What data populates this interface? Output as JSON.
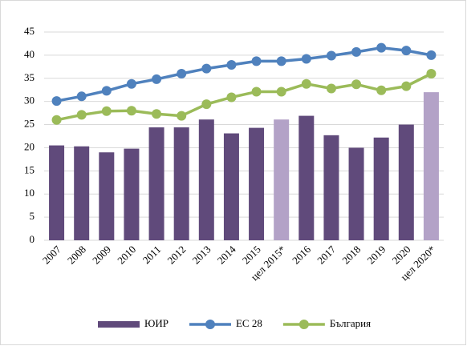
{
  "chart_data": {
    "type": "bar-line",
    "categories": [
      "2007",
      "2008",
      "2009",
      "2010",
      "2011",
      "2012",
      "2013",
      "2014",
      "2015",
      "цел 2015*",
      "2016",
      "2017",
      "2018",
      "2019",
      "2020",
      "цел 2020*"
    ],
    "series": [
      {
        "name": "ЮИР",
        "type": "bar",
        "color": "#604a7b",
        "colors": [
          "#604a7b",
          "#604a7b",
          "#604a7b",
          "#604a7b",
          "#604a7b",
          "#604a7b",
          "#604a7b",
          "#604a7b",
          "#604a7b",
          "#b3a2c7",
          "#604a7b",
          "#604a7b",
          "#604a7b",
          "#604a7b",
          "#604a7b",
          "#b3a2c7"
        ],
        "values": [
          20.5,
          20.3,
          19,
          19.8,
          24.4,
          24.4,
          26.1,
          23.1,
          24.3,
          26.1,
          26.9,
          22.7,
          20,
          22.2,
          25,
          32
        ]
      },
      {
        "name": "ЕС 28",
        "type": "line",
        "color": "#4f81bd",
        "values": [
          30.1,
          31.1,
          32.3,
          33.8,
          34.8,
          36,
          37.1,
          37.9,
          38.7,
          38.7,
          39.2,
          39.9,
          40.7,
          41.6,
          41,
          40
        ]
      },
      {
        "name": "България",
        "type": "line",
        "color": "#9bbb59",
        "values": [
          26,
          27.1,
          27.9,
          28,
          27.3,
          26.9,
          29.4,
          30.9,
          32.1,
          32.1,
          33.8,
          32.8,
          33.7,
          32.4,
          33.3,
          36
        ]
      }
    ],
    "ylim": [
      0,
      45
    ],
    "yticks": [
      0,
      5,
      10,
      15,
      20,
      25,
      30,
      35,
      40,
      45
    ],
    "grid": true,
    "legend": "bottom"
  }
}
